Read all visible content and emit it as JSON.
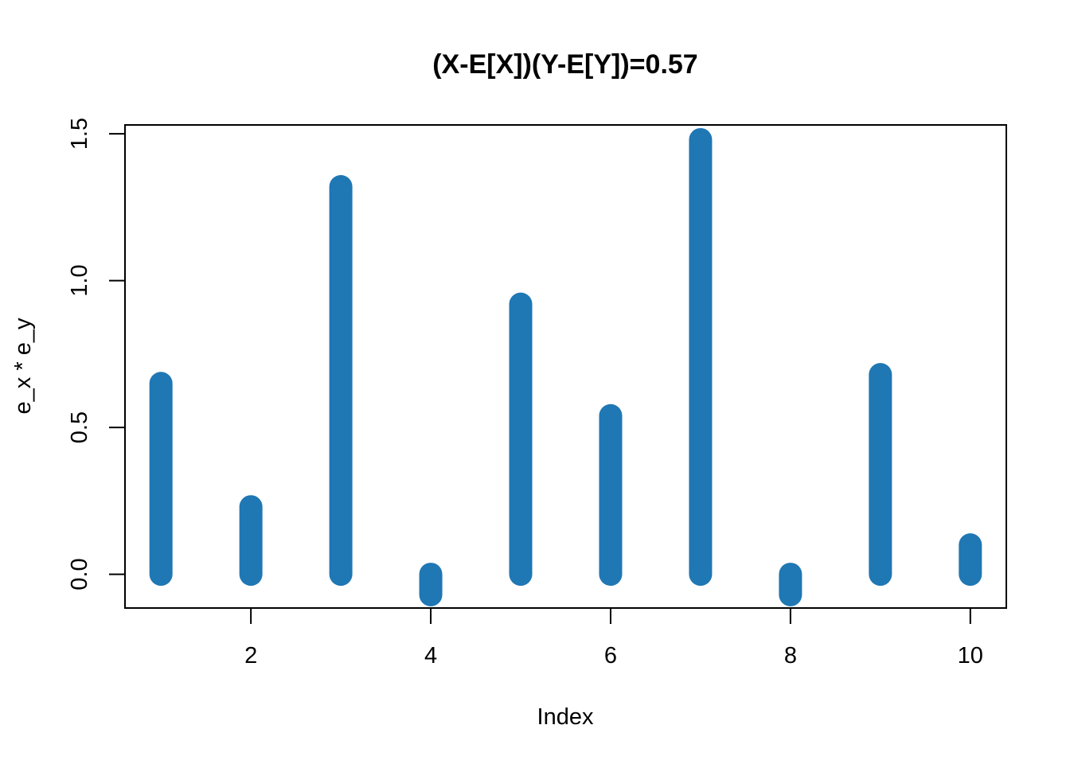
{
  "chart_data": {
    "type": "bar",
    "title": "(X-E[X])(Y-E[Y])=0.57",
    "xlabel": "Index",
    "ylabel": "e_x * e_y",
    "x": [
      1,
      2,
      3,
      4,
      5,
      6,
      7,
      8,
      9,
      10
    ],
    "values": [
      0.65,
      0.23,
      1.32,
      -0.07,
      0.92,
      0.54,
      1.48,
      -0.07,
      0.68,
      0.1
    ],
    "xlim": [
      0.6,
      10.4
    ],
    "ylim": [
      -0.115,
      1.53
    ],
    "xticks": [
      2,
      4,
      6,
      8,
      10
    ],
    "xtick_labels": [
      "2",
      "4",
      "6",
      "8",
      "10"
    ],
    "yticks": [
      0,
      0.5,
      1,
      1.5
    ],
    "ytick_labels": [
      "0.0",
      "0.5",
      "1.0",
      "1.5"
    ],
    "bar_color": "#1f77b4",
    "grid": false
  }
}
